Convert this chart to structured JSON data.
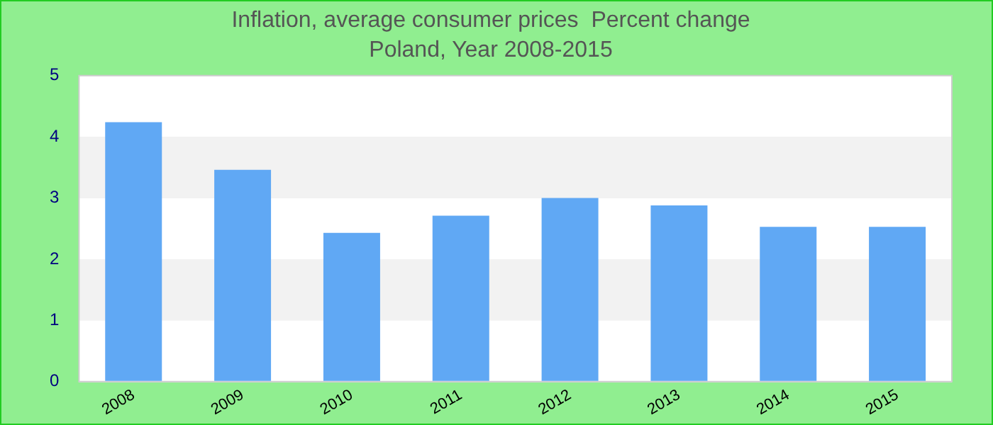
{
  "chart_data": {
    "type": "bar",
    "title": "Inflation, average consumer prices  Percent change",
    "subtitle": "Poland, Year 2008-2015",
    "categories": [
      "2008",
      "2009",
      "2010",
      "2011",
      "2012",
      "2013",
      "2014",
      "2015"
    ],
    "values": [
      4.24,
      3.46,
      2.43,
      2.71,
      3.0,
      2.88,
      2.53,
      2.53
    ],
    "color": "#60a8f4",
    "ylim": [
      0,
      5
    ],
    "yticks": [
      0,
      1,
      2,
      3,
      4,
      5
    ],
    "grid": "y",
    "legend": false
  }
}
